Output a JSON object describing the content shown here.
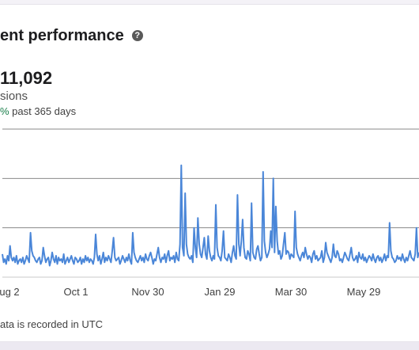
{
  "header": {
    "title": "ent performance",
    "help_icon": "question-circle-icon"
  },
  "summary": {
    "value": "11,092",
    "label": "sions",
    "change_pct": "%",
    "change_text": " past 365 days",
    "change_color": "#1a7f4b"
  },
  "footnote": "ata is recorded in UTC",
  "chart_data": {
    "type": "line",
    "x_tick_labels": [
      "ug 2",
      "Oct 1",
      "Nov 30",
      "Jan 29",
      "Mar 30",
      "May 29"
    ],
    "line_color": "#4a86d8",
    "grid": true,
    "series": [
      {
        "values": [
          14,
          9,
          11,
          8,
          13,
          10,
          19,
          12,
          10,
          12,
          9,
          13,
          8,
          10,
          11,
          9,
          12,
          8,
          10,
          13,
          11,
          9,
          27,
          16,
          13,
          12,
          10,
          9,
          11,
          12,
          8,
          10,
          18,
          13,
          9,
          11,
          12,
          7,
          10,
          15,
          11,
          9,
          13,
          8,
          12,
          10,
          11,
          9,
          14,
          8,
          10,
          12,
          9,
          11,
          13,
          10,
          8,
          12,
          11,
          9,
          10,
          12,
          8,
          11,
          9,
          13,
          10,
          12,
          9,
          11,
          10,
          8,
          12,
          26,
          14,
          10,
          13,
          8,
          11,
          15,
          9,
          12,
          10,
          13,
          11,
          9,
          16,
          24,
          12,
          10,
          11,
          12,
          8,
          10,
          13,
          11,
          9,
          12,
          10,
          14,
          10,
          8,
          27,
          15,
          12,
          10,
          9,
          11,
          13,
          10,
          12,
          9,
          14,
          11,
          10,
          13,
          15,
          12,
          8,
          11,
          10,
          14,
          18,
          12,
          9,
          12,
          11,
          14,
          9,
          13,
          16,
          10,
          12,
          11,
          13,
          9,
          15,
          11,
          10,
          20,
          68,
          18,
          13,
          51,
          20,
          14,
          12,
          11,
          13,
          9,
          30,
          18,
          12,
          36,
          20,
          14,
          12,
          18,
          24,
          14,
          11,
          25,
          16,
          12,
          10,
          13,
          11,
          44,
          18,
          13,
          12,
          10,
          16,
          28,
          12,
          11,
          10,
          14,
          12,
          9,
          15,
          19,
          13,
          11,
          50,
          20,
          13,
          22,
          35,
          18,
          12,
          11,
          16,
          14,
          10,
          45,
          15,
          12,
          11,
          17,
          19,
          14,
          10,
          12,
          64,
          22,
          15,
          12,
          14,
          17,
          28,
          18,
          60,
          15,
          43,
          22,
          14,
          16,
          11,
          13,
          20,
          27,
          14,
          16,
          15,
          11,
          14,
          13,
          12,
          40,
          18,
          14,
          12,
          10,
          13,
          15,
          12,
          18,
          14,
          11,
          13,
          12,
          9,
          14,
          16,
          11,
          13,
          10,
          11,
          12,
          16,
          9,
          12,
          21,
          15,
          13,
          11,
          9,
          12,
          20,
          13,
          12,
          16,
          14,
          10,
          11,
          9,
          12,
          15,
          13,
          11,
          10,
          14,
          18,
          12,
          10,
          11,
          13,
          9,
          15,
          12,
          11,
          14,
          10,
          12,
          9,
          11,
          13,
          12,
          10,
          14,
          11,
          9,
          12,
          13,
          10,
          12,
          9,
          11,
          14,
          10,
          13,
          12,
          33,
          16,
          12,
          11,
          9,
          10,
          13,
          11,
          12,
          10,
          14,
          11,
          9,
          12,
          10,
          13,
          16,
          12,
          11,
          10,
          14,
          30,
          12,
          15
        ]
      }
    ]
  }
}
